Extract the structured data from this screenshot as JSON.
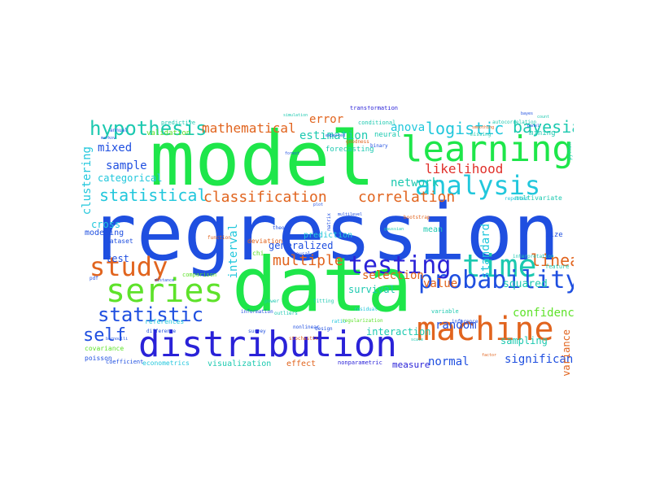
{
  "colors": {
    "green": "#1ee64a",
    "bright_green": "#5ee22a",
    "blue": "#1f4fe0",
    "indigo": "#2a22d8",
    "cyan": "#21c7dc",
    "teal": "#1cc9b0",
    "sky": "#27a7e8",
    "orange": "#e1641e",
    "red": "#e0302a",
    "purple": "#7a22e0",
    "lime": "#9ee21e",
    "pink": "#e02a7a"
  },
  "words": [
    {
      "text": "regression",
      "color": "#1f4fe0"
    },
    {
      "text": "model",
      "color": "#1ee64a"
    },
    {
      "text": "data",
      "color": "#1ee64a"
    },
    {
      "text": "distribution",
      "color": "#2a22d8"
    },
    {
      "text": "learning",
      "color": "#1ee64a"
    },
    {
      "text": "machine",
      "color": "#e1641e"
    },
    {
      "text": "series",
      "color": "#5ee22a"
    },
    {
      "text": "analysis",
      "color": "#21c7dc"
    },
    {
      "text": "time",
      "color": "#1cc9b0"
    },
    {
      "text": "probability",
      "color": "#1f4fe0"
    },
    {
      "text": "testing",
      "color": "#2a22d8"
    },
    {
      "text": "study",
      "color": "#e1641e"
    },
    {
      "text": "hypothesis",
      "color": "#1cc9b0"
    },
    {
      "text": "statistic",
      "color": "#1f4fe0"
    },
    {
      "text": "self",
      "color": "#1f4fe0"
    },
    {
      "text": "logistic",
      "color": "#21c7dc"
    },
    {
      "text": "bayesian",
      "color": "#1cc9b0"
    },
    {
      "text": "statistical",
      "color": "#21c7dc"
    },
    {
      "text": "classification",
      "color": "#e1641e"
    },
    {
      "text": "correlation",
      "color": "#e1641e"
    },
    {
      "text": "mathematical",
      "color": "#e1641e"
    },
    {
      "text": "multiple",
      "color": "#e1641e"
    },
    {
      "text": "linear",
      "color": "#e1641e"
    },
    {
      "text": "interval",
      "color": "#21c7dc"
    },
    {
      "text": "clustering",
      "color": "#21c7dc"
    },
    {
      "text": "likelihood",
      "color": "#e0302a"
    },
    {
      "text": "network",
      "color": "#1cc9b0"
    },
    {
      "text": "anova",
      "color": "#21c7dc"
    },
    {
      "text": "mixed",
      "color": "#1f4fe0"
    },
    {
      "text": "sample",
      "color": "#1f4fe0"
    },
    {
      "text": "categorical",
      "color": "#21c7dc"
    },
    {
      "text": "estimation",
      "color": "#1cc9b0"
    },
    {
      "text": "error",
      "color": "#e1641e"
    },
    {
      "text": "confidence",
      "color": "#5ee22a"
    },
    {
      "text": "random",
      "color": "#1f4fe0"
    },
    {
      "text": "significance",
      "color": "#1f4fe0"
    },
    {
      "text": "selection",
      "color": "#e1641e"
    },
    {
      "text": "generalized",
      "color": "#1f4fe0"
    },
    {
      "text": "value",
      "color": "#e1641e"
    },
    {
      "text": "normal",
      "color": "#1f4fe0"
    },
    {
      "text": "squared",
      "color": "#1cc9b0"
    },
    {
      "text": "sampling",
      "color": "#1cc9b0"
    },
    {
      "text": "standard",
      "color": "#21c7dc"
    },
    {
      "text": "variance",
      "color": "#e1641e"
    },
    {
      "text": "survival",
      "color": "#1cc9b0"
    },
    {
      "text": "interaction",
      "color": "#1cc9b0"
    },
    {
      "text": "test",
      "color": "#1f4fe0"
    },
    {
      "text": "cross",
      "color": "#21c7dc"
    },
    {
      "text": "modeling",
      "color": "#1f4fe0"
    },
    {
      "text": "prediction",
      "color": "#21c7dc"
    },
    {
      "text": "mean",
      "color": "#1cc9b0"
    },
    {
      "text": "effect",
      "color": "#e1641e"
    },
    {
      "text": "measure",
      "color": "#2a22d8"
    },
    {
      "text": "visualization",
      "color": "#1cc9b0"
    },
    {
      "text": "deviation",
      "color": "#e1641e"
    },
    {
      "text": "multivariate",
      "color": "#1cc9b0"
    },
    {
      "text": "forecasting",
      "color": "#1cc9b0"
    },
    {
      "text": "transformation",
      "color": "#2a22d8"
    },
    {
      "text": "validation",
      "color": "#5ee22a"
    },
    {
      "text": "predictive",
      "color": "#1cc9b0"
    },
    {
      "text": "neural",
      "color": "#1cc9b0"
    },
    {
      "text": "mining",
      "color": "#1cc9b0"
    },
    {
      "text": "dataset",
      "color": "#1f4fe0"
    },
    {
      "text": "covariance",
      "color": "#5ee22a"
    },
    {
      "text": "poisson",
      "color": "#1f4fe0"
    },
    {
      "text": "coefficient",
      "color": "#1f4fe0"
    },
    {
      "text": "econometrics",
      "color": "#21c7dc"
    },
    {
      "text": "nonparametric",
      "color": "#2a22d8"
    },
    {
      "text": "inference",
      "color": "#1f4fe0"
    },
    {
      "text": "comparison",
      "color": "#5ee22a"
    },
    {
      "text": "references",
      "color": "#21c7dc"
    },
    {
      "text": "survey",
      "color": "#1f4fe0"
    },
    {
      "text": "feature",
      "color": "#1cc9b0"
    },
    {
      "text": "size",
      "color": "#1f4fe0"
    },
    {
      "text": "repeated",
      "color": "#21c7dc"
    },
    {
      "text": "function",
      "color": "#e1641e"
    },
    {
      "text": "conditional",
      "color": "#1cc9b0"
    },
    {
      "text": "goodness",
      "color": "#e1641e"
    },
    {
      "text": "binary",
      "color": "#1f4fe0"
    },
    {
      "text": "difference",
      "color": "#1f4fe0"
    },
    {
      "text": "chi",
      "color": "#5ee22a"
    },
    {
      "text": "fitting",
      "color": "#1cc9b0"
    },
    {
      "text": "residual",
      "color": "#21c7dc"
    },
    {
      "text": "matrix",
      "color": "#1f4fe0"
    },
    {
      "text": "outliers",
      "color": "#1cc9b0"
    },
    {
      "text": "design",
      "color": "#1f4fe0"
    },
    {
      "text": "ratio",
      "color": "#21c7dc"
    },
    {
      "text": "power",
      "color": "#1cc9b0"
    },
    {
      "text": "panel",
      "color": "#1f4fe0"
    },
    {
      "text": "bayes",
      "color": "#1f4fe0"
    },
    {
      "text": "python",
      "color": "#1cc9b0"
    },
    {
      "text": "annual",
      "color": "#1f4fe0"
    },
    {
      "text": "markov",
      "color": "#1f4fe0"
    },
    {
      "text": "bernoulli",
      "color": "#1f4fe0"
    },
    {
      "text": "simulation",
      "color": "#1cc9b0"
    },
    {
      "text": "theory",
      "color": "#1f4fe0"
    },
    {
      "text": "forest",
      "color": "#1f4fe0"
    },
    {
      "text": "smoothing",
      "color": "#e1641e"
    },
    {
      "text": "autocorrelation",
      "color": "#1cc9b0"
    },
    {
      "text": "interpretation",
      "color": "#1cc9b0"
    },
    {
      "text": "regularization",
      "color": "#5ee22a"
    },
    {
      "text": "missing",
      "color": "#1cc9b0"
    },
    {
      "text": "expected",
      "color": "#1f4fe0"
    },
    {
      "text": "gaussian",
      "color": "#1cc9b0"
    },
    {
      "text": "multilevel",
      "color": "#1f4fe0"
    },
    {
      "text": "bootstrap",
      "color": "#e1641e"
    },
    {
      "text": "scale",
      "color": "#1cc9b0"
    },
    {
      "text": "stochastic",
      "color": "#e1641e"
    },
    {
      "text": "nonlinear",
      "color": "#1f4fe0"
    },
    {
      "text": "information",
      "color": "#1f4fe0"
    },
    {
      "text": "pdf",
      "color": "#1f4fe0"
    },
    {
      "text": "variable",
      "color": "#1cc9b0"
    },
    {
      "text": "distance",
      "color": "#1f4fe0"
    },
    {
      "text": "factor",
      "color": "#e1641e"
    },
    {
      "text": "causal",
      "color": "#1f4fe0"
    },
    {
      "text": "plot",
      "color": "#1f4fe0"
    },
    {
      "text": "count",
      "color": "#1cc9b0"
    }
  ]
}
